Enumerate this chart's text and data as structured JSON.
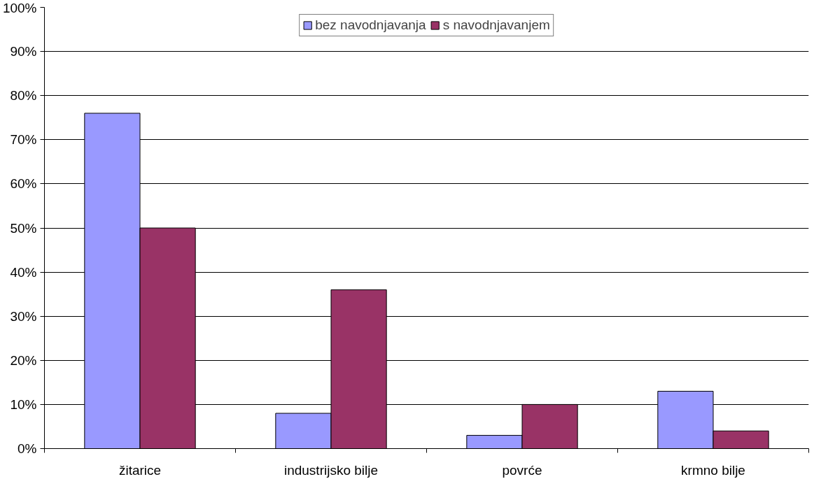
{
  "chart_data": {
    "type": "bar",
    "categories": [
      "žitarice",
      "industrijsko bilje",
      "povrće",
      "krmno bilje"
    ],
    "series": [
      {
        "name": "bez navodnjavanja",
        "color": "#9999ff",
        "values": [
          76,
          8,
          3,
          13
        ]
      },
      {
        "name": "s navodnjavanjem",
        "color": "#993366",
        "values": [
          50,
          36,
          10,
          4
        ]
      }
    ],
    "ylim": [
      0,
      100
    ],
    "yticks": [
      {
        "value": 0,
        "label": "0%"
      },
      {
        "value": 10,
        "label": "10%"
      },
      {
        "value": 20,
        "label": "20%"
      },
      {
        "value": 30,
        "label": "30%"
      },
      {
        "value": 40,
        "label": "40%"
      },
      {
        "value": 50,
        "label": "50%"
      },
      {
        "value": 60,
        "label": "60%"
      },
      {
        "value": 70,
        "label": "70%"
      },
      {
        "value": 80,
        "label": "80%"
      },
      {
        "value": 90,
        "label": "90%"
      },
      {
        "value": 100,
        "label": "100%"
      }
    ],
    "grid": "y",
    "legend": "top"
  }
}
